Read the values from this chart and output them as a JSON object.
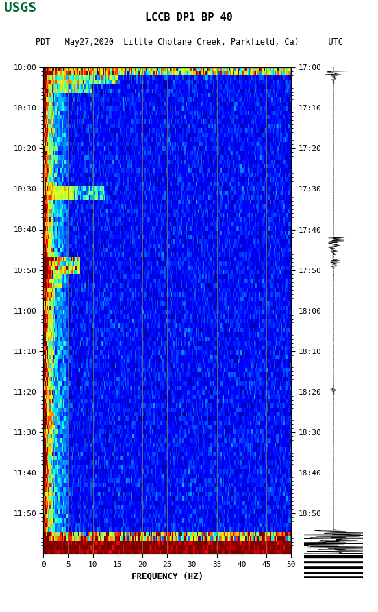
{
  "title_line1": "LCCB DP1 BP 40",
  "title_line2": "PDT   May27,2020  Little Cholane Creek, Parkfield, Ca)      UTC",
  "xlabel": "FREQUENCY (HZ)",
  "freq_min": 0,
  "freq_max": 50,
  "time_left_labels": [
    "10:00",
    "10:10",
    "10:20",
    "10:30",
    "10:40",
    "10:50",
    "11:00",
    "11:10",
    "11:20",
    "11:30",
    "11:40",
    "11:50"
  ],
  "time_right_labels": [
    "17:00",
    "17:10",
    "17:20",
    "17:30",
    "17:40",
    "17:50",
    "18:00",
    "18:10",
    "18:20",
    "18:30",
    "18:40",
    "18:50"
  ],
  "freq_ticks": [
    0,
    5,
    10,
    15,
    20,
    25,
    30,
    35,
    40,
    45,
    50
  ],
  "grid_color": "#808040",
  "background_color": "#000080",
  "fig_bg": "#ffffff",
  "usgs_green": "#006633",
  "n_time": 110,
  "n_freq": 200
}
